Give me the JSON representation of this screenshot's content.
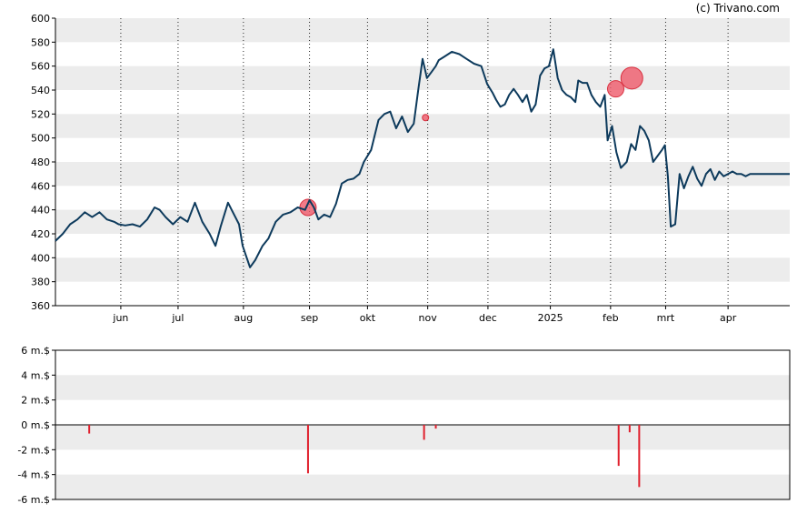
{
  "credit": "(c) Trivano.com",
  "chart_data": [
    {
      "type": "line",
      "ylim": [
        360,
        600
      ],
      "yticks": [
        360,
        380,
        400,
        420,
        440,
        460,
        480,
        500,
        520,
        540,
        560,
        580,
        600
      ],
      "x_month_labels": [
        {
          "label": "jun",
          "x": 0.089
        },
        {
          "label": "jul",
          "x": 0.167
        },
        {
          "label": "aug",
          "x": 0.256
        },
        {
          "label": "sep",
          "x": 0.346
        },
        {
          "label": "okt",
          "x": 0.425
        },
        {
          "label": "nov",
          "x": 0.507
        },
        {
          "label": "dec",
          "x": 0.589
        },
        {
          "label": "2025",
          "x": 0.674
        },
        {
          "label": "feb",
          "x": 0.756
        },
        {
          "label": "mrt",
          "x": 0.831
        },
        {
          "label": "apr",
          "x": 0.916
        }
      ],
      "line_color": "#0d3a5c",
      "series": [
        {
          "x": [
            0.0,
            0.01,
            0.02,
            0.03,
            0.04,
            0.05,
            0.06,
            0.07,
            0.08,
            0.086,
            0.095,
            0.105,
            0.115,
            0.125,
            0.135,
            0.142,
            0.15,
            0.16,
            0.17,
            0.18,
            0.19,
            0.2,
            0.21,
            0.218,
            0.225,
            0.235,
            0.24,
            0.25,
            0.255,
            0.265,
            0.272,
            0.282,
            0.29,
            0.3,
            0.31,
            0.32,
            0.33,
            0.34,
            0.346,
            0.352,
            0.358,
            0.366,
            0.374,
            0.382,
            0.39,
            0.398,
            0.406,
            0.414,
            0.42,
            0.43,
            0.44,
            0.448,
            0.456,
            0.464,
            0.472,
            0.48,
            0.488,
            0.494,
            0.5,
            0.506,
            0.512,
            0.518,
            0.522,
            0.53,
            0.54,
            0.55,
            0.56,
            0.57,
            0.58,
            0.588,
            0.595,
            0.6,
            0.606,
            0.612,
            0.618,
            0.624,
            0.63,
            0.636,
            0.642,
            0.648,
            0.654,
            0.66,
            0.666,
            0.672,
            0.678,
            0.684,
            0.69,
            0.696,
            0.702,
            0.708,
            0.712,
            0.718,
            0.724,
            0.73,
            0.736,
            0.742,
            0.748,
            0.752,
            0.758,
            0.764,
            0.77,
            0.778,
            0.784,
            0.79,
            0.796,
            0.802,
            0.808,
            0.814,
            0.82,
            0.826,
            0.83,
            0.834,
            0.838,
            0.844,
            0.85,
            0.856,
            0.862,
            0.868,
            0.874,
            0.88,
            0.886,
            0.892,
            0.898,
            0.904,
            0.91,
            0.916,
            0.922,
            0.928,
            0.934,
            0.94,
            0.946,
            0.95,
            0.956,
            0.962,
            0.968,
            0.974,
            0.98,
            0.986,
            0.992,
            1.0
          ],
          "values": [
            414,
            420,
            428,
            432,
            438,
            434,
            438,
            432,
            430,
            428,
            427,
            428,
            426,
            432,
            442,
            440,
            434,
            428,
            434,
            430,
            446,
            430,
            420,
            410,
            426,
            446,
            440,
            428,
            410,
            392,
            398,
            410,
            416,
            430,
            436,
            438,
            442,
            440,
            448,
            442,
            432,
            436,
            434,
            445,
            462,
            465,
            466,
            470,
            480,
            490,
            515,
            520,
            522,
            508,
            518,
            505,
            512,
            540,
            566,
            550,
            555,
            560,
            565,
            568,
            572,
            570,
            566,
            562,
            560,
            545,
            538,
            532,
            526,
            528,
            536,
            541,
            536,
            530,
            536,
            522,
            528,
            552,
            558,
            560,
            574,
            550,
            540,
            536,
            534,
            530,
            548,
            546,
            546,
            536,
            530,
            526,
            536,
            498,
            510,
            488,
            475,
            480,
            495,
            490,
            510,
            506,
            498,
            480,
            485,
            490,
            494,
            468,
            426,
            428,
            470,
            458,
            468,
            476,
            466,
            460,
            470,
            474,
            465,
            472,
            468,
            470,
            472,
            470,
            470,
            468,
            470,
            470,
            470,
            470,
            470,
            470,
            470,
            470,
            470,
            470
          ]
        }
      ],
      "markers": [
        {
          "x": 0.344,
          "y": 442,
          "size": "medium"
        },
        {
          "x": 0.504,
          "y": 517,
          "size": "tiny"
        },
        {
          "x": 0.763,
          "y": 541,
          "size": "medium"
        },
        {
          "x": 0.785,
          "y": 550,
          "size": "large"
        }
      ]
    },
    {
      "type": "bar",
      "ylim": [
        -6,
        6
      ],
      "yticks": [
        "6 m.$",
        "4 m.$",
        "2 m.$",
        "0 m.$",
        "-2 m.$",
        "-4 m.$",
        "-6 m.$"
      ],
      "ytick_values": [
        6,
        4,
        2,
        0,
        -2,
        -4,
        -6
      ],
      "bar_color": "#e0202d",
      "bars": [
        {
          "x": 0.046,
          "value": -0.7
        },
        {
          "x": 0.344,
          "value": -3.9
        },
        {
          "x": 0.502,
          "value": -1.2
        },
        {
          "x": 0.518,
          "value": -0.3
        },
        {
          "x": 0.767,
          "value": -3.3
        },
        {
          "x": 0.782,
          "value": -0.6
        },
        {
          "x": 0.795,
          "value": -5.0
        }
      ]
    }
  ]
}
